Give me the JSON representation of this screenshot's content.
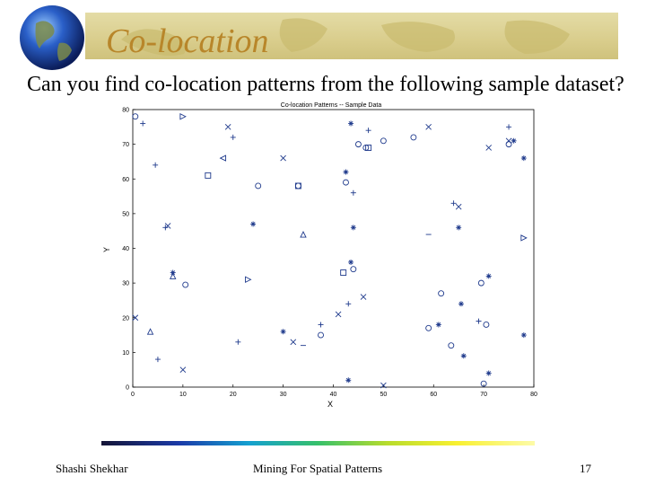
{
  "slide": {
    "title": "Co-location",
    "question": "Can you find co-location patterns from the following sample dataset?"
  },
  "footer": {
    "author": "Shashi Shekhar",
    "course_title": "Mining For Spatial Patterns",
    "page_number": "17"
  },
  "colors": {
    "title": "#b8862a",
    "marker": "#1f3a8c",
    "banner": "#d9cd8c"
  },
  "chart_data": {
    "type": "scatter",
    "title": "Co-location Patterns -- Sample Data",
    "xlabel": "X",
    "ylabel": "Y",
    "xlim": [
      0,
      80
    ],
    "ylim": [
      0,
      80
    ],
    "xticks": [
      0,
      10,
      20,
      30,
      40,
      50,
      60,
      70,
      80
    ],
    "yticks": [
      0,
      10,
      20,
      30,
      40,
      50,
      60,
      70,
      80
    ],
    "grid": false,
    "legend": "none",
    "series": [
      {
        "marker": "o",
        "points": [
          [
            0.5,
            78
          ],
          [
            10.5,
            29.5
          ],
          [
            25,
            58
          ],
          [
            33,
            58
          ],
          [
            37.5,
            15
          ],
          [
            42.5,
            59
          ],
          [
            45,
            70
          ],
          [
            46.5,
            69
          ],
          [
            50,
            71
          ],
          [
            56,
            72
          ],
          [
            59,
            17
          ],
          [
            61.5,
            27
          ],
          [
            63.5,
            12
          ],
          [
            69.5,
            30
          ],
          [
            70,
            1
          ],
          [
            70.5,
            18
          ],
          [
            75,
            70
          ],
          [
            44,
            34
          ]
        ]
      },
      {
        "marker": "x",
        "points": [
          [
            0.5,
            20
          ],
          [
            7,
            46.5
          ],
          [
            10,
            5
          ],
          [
            19,
            75
          ],
          [
            30,
            66
          ],
          [
            32,
            13
          ],
          [
            41,
            21
          ],
          [
            46,
            26
          ],
          [
            50,
            0.5
          ],
          [
            59,
            75
          ],
          [
            65,
            52
          ],
          [
            71,
            69
          ],
          [
            75,
            71
          ]
        ]
      },
      {
        "marker": "+",
        "points": [
          [
            2,
            76
          ],
          [
            4.5,
            64
          ],
          [
            5,
            8
          ],
          [
            6.5,
            46
          ],
          [
            20,
            72
          ],
          [
            21,
            13
          ],
          [
            37.5,
            18
          ],
          [
            43,
            24
          ],
          [
            44,
            56
          ],
          [
            47,
            74
          ],
          [
            64,
            53
          ],
          [
            69,
            19
          ],
          [
            75,
            75
          ]
        ]
      },
      {
        "marker": "*",
        "points": [
          [
            8,
            33
          ],
          [
            24,
            47
          ],
          [
            30,
            16
          ],
          [
            42.5,
            62
          ],
          [
            43,
            2
          ],
          [
            43.5,
            76
          ],
          [
            43.5,
            36
          ],
          [
            44,
            46
          ],
          [
            61,
            18
          ],
          [
            65,
            46
          ],
          [
            65.5,
            24
          ],
          [
            66,
            9
          ],
          [
            71,
            32
          ],
          [
            71,
            4
          ],
          [
            76,
            71
          ],
          [
            78,
            66
          ],
          [
            78,
            15
          ]
        ]
      },
      {
        "marker": "^",
        "points": [
          [
            3.5,
            16
          ],
          [
            8,
            32
          ],
          [
            34,
            44
          ]
        ]
      },
      {
        "marker": ">",
        "points": [
          [
            10,
            78
          ],
          [
            23,
            31
          ],
          [
            78,
            43
          ]
        ]
      },
      {
        "marker": "<",
        "points": [
          [
            18,
            66
          ]
        ]
      },
      {
        "marker": "s",
        "points": [
          [
            15,
            61
          ],
          [
            33,
            58
          ],
          [
            42,
            33
          ],
          [
            47,
            69
          ]
        ]
      },
      {
        "marker": "-",
        "points": [
          [
            34,
            12
          ],
          [
            59,
            44
          ]
        ]
      }
    ]
  }
}
